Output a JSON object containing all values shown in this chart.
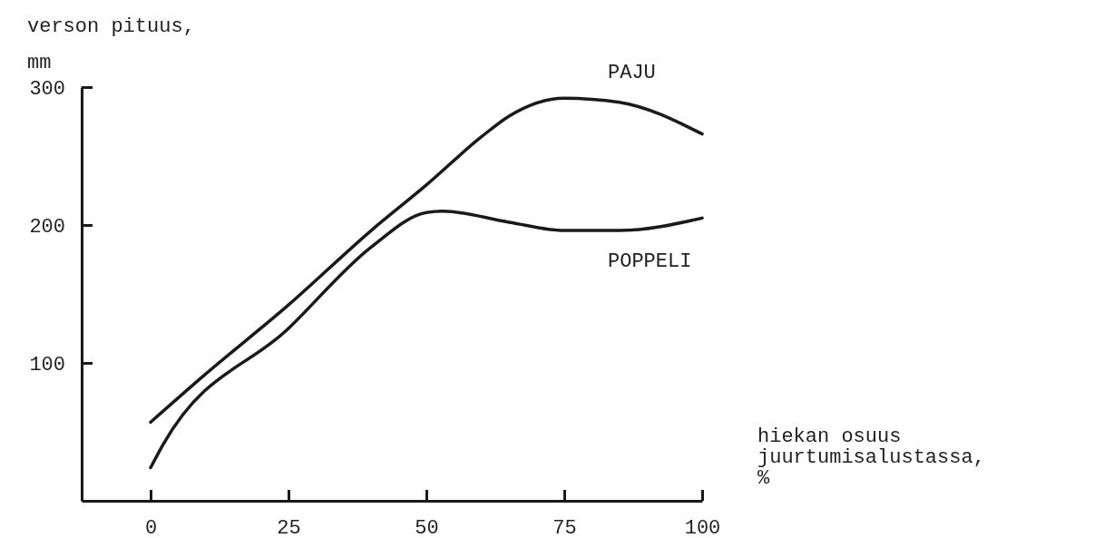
{
  "chart_data": {
    "type": "line",
    "xlabel": "hiekan osuus\njuurtumisalustassa,\n%",
    "ylabel": "verson pituus,\nmm",
    "xlim": [
      -12.5,
      100
    ],
    "ylim": [
      0,
      300
    ],
    "xticks": [
      0,
      25,
      50,
      75,
      100
    ],
    "yticks": [
      100,
      200,
      300
    ],
    "grid": false,
    "marker": "none",
    "line_style": "solid",
    "series": [
      {
        "name": "PAJU",
        "color": "#1a1a1a",
        "x": [
          0,
          10,
          25,
          40,
          50,
          60,
          65,
          75,
          85,
          100
        ],
        "values": [
          57,
          92,
          142,
          196,
          229,
          264,
          279,
          292,
          289,
          266
        ]
      },
      {
        "name": "POPPELI",
        "color": "#1a1a1a",
        "x": [
          0,
          2.3,
          25,
          40,
          50,
          53,
          65,
          75,
          85,
          100
        ],
        "values": [
          24,
          41,
          125,
          184,
          209,
          210,
          202,
          196,
          196,
          205
        ]
      }
    ]
  }
}
